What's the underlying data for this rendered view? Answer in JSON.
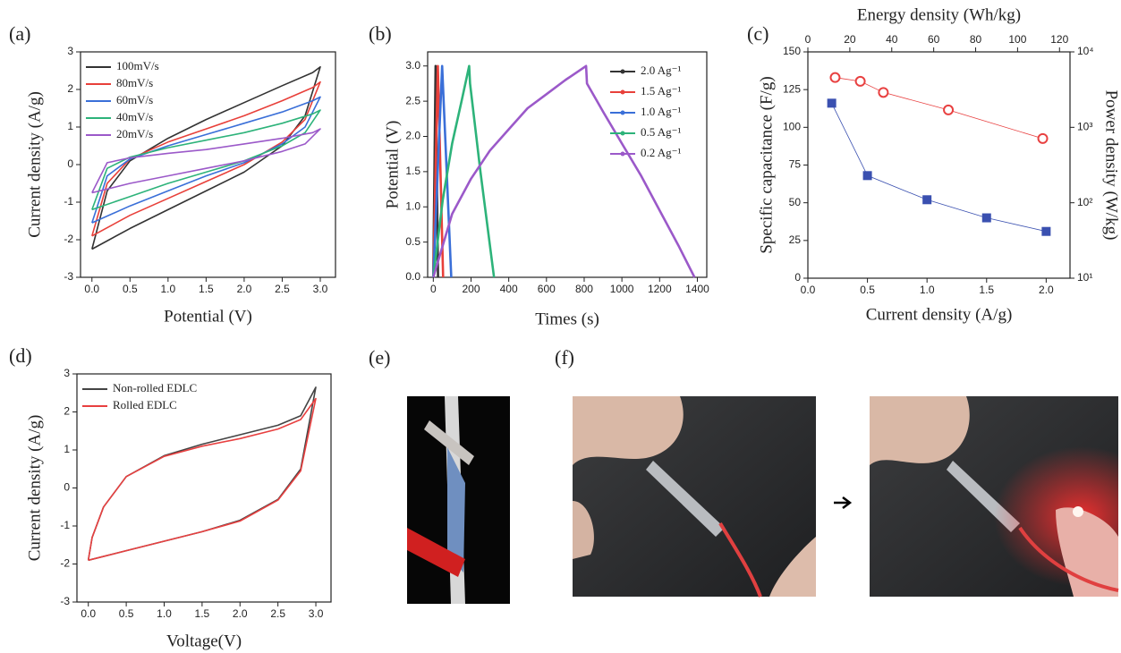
{
  "figure_panels": [
    {
      "label": "(e)"
    },
    {
      "label": "(f)"
    }
  ],
  "chart_data": [
    {
      "type": "line",
      "panel_label": "(a)",
      "xlabel": "Potential (V)",
      "ylabel": "Current density (A/g)",
      "xlim": [
        -0.15,
        3.2
      ],
      "ylim": [
        -3,
        3
      ],
      "xticks": [
        {
          "value": 0,
          "label": "0.0"
        },
        {
          "value": 0.5,
          "label": "0.5"
        },
        {
          "value": 1,
          "label": "1.0"
        },
        {
          "value": 1.5,
          "label": "1.5"
        },
        {
          "value": 2,
          "label": "2.0"
        },
        {
          "value": 2.5,
          "label": "2.5"
        },
        {
          "value": 3,
          "label": "3.0"
        }
      ],
      "yticks": [
        -3,
        -2,
        -1,
        0,
        1,
        2,
        3
      ],
      "legend": "upper left",
      "series": [
        {
          "name": "100mV/s",
          "color": "#333333",
          "x": [
            0,
            0.5,
            1,
            1.5,
            2,
            2.5,
            2.8,
            3,
            2.9,
            2.5,
            2,
            1.5,
            1,
            0.5,
            0.2,
            0
          ],
          "values": [
            -2.25,
            -1.7,
            -1.2,
            -0.7,
            -0.2,
            0.5,
            1.3,
            2.6,
            2.45,
            2.1,
            1.65,
            1.2,
            0.7,
            0.1,
            -0.7,
            -2.25
          ]
        },
        {
          "name": "80mV/s",
          "color": "#e8403a",
          "x": [
            0,
            0.5,
            1,
            1.5,
            2,
            2.5,
            2.8,
            3,
            2.9,
            2.5,
            2,
            1.5,
            1,
            0.5,
            0.2,
            0
          ],
          "values": [
            -1.9,
            -1.35,
            -0.9,
            -0.45,
            0,
            0.6,
            1.2,
            2.2,
            2.05,
            1.7,
            1.3,
            0.95,
            0.6,
            0.15,
            -0.5,
            -1.9
          ]
        },
        {
          "name": "60mV/s",
          "color": "#3a6fd8",
          "x": [
            0,
            0.5,
            1,
            1.5,
            2,
            2.5,
            2.8,
            3,
            2.9,
            2.5,
            2,
            1.5,
            1,
            0.5,
            0.2,
            0
          ],
          "values": [
            -1.55,
            -1.1,
            -0.7,
            -0.3,
            0.05,
            0.55,
            1.0,
            1.8,
            1.7,
            1.4,
            1.1,
            0.8,
            0.5,
            0.15,
            -0.3,
            -1.55
          ]
        },
        {
          "name": "40mV/s",
          "color": "#2db37a",
          "x": [
            0,
            0.5,
            1,
            1.5,
            2,
            2.5,
            2.8,
            3,
            2.9,
            2.5,
            2,
            1.5,
            1,
            0.5,
            0.2,
            0
          ],
          "values": [
            -1.2,
            -0.85,
            -0.5,
            -0.2,
            0.1,
            0.5,
            0.85,
            1.45,
            1.35,
            1.1,
            0.85,
            0.65,
            0.45,
            0.2,
            -0.1,
            -1.2
          ]
        },
        {
          "name": "20mV/s",
          "color": "#9b59c9",
          "x": [
            0,
            0.5,
            1,
            1.5,
            2,
            2.5,
            2.8,
            3,
            2.9,
            2.5,
            2,
            1.5,
            1,
            0.5,
            0.2,
            0
          ],
          "values": [
            -0.75,
            -0.5,
            -0.3,
            -0.1,
            0.1,
            0.35,
            0.55,
            0.95,
            0.85,
            0.7,
            0.55,
            0.4,
            0.3,
            0.18,
            0.05,
            -0.75
          ]
        }
      ]
    },
    {
      "type": "line",
      "panel_label": "(b)",
      "xlabel": "Times (s)",
      "ylabel": "Potential (V)",
      "xlim": [
        -30,
        1450
      ],
      "ylim": [
        0,
        3.2
      ],
      "xticks": [
        0,
        200,
        400,
        600,
        800,
        1000,
        1200,
        1400
      ],
      "yticks": [
        {
          "value": 0,
          "label": "0.0"
        },
        {
          "value": 0.5,
          "label": "0.5"
        },
        {
          "value": 1,
          "label": "1.0"
        },
        {
          "value": 1.5,
          "label": "1.5"
        },
        {
          "value": 2,
          "label": "2.0"
        },
        {
          "value": 2.5,
          "label": "2.5"
        },
        {
          "value": 3,
          "label": "3.0"
        }
      ],
      "legend": "upper right",
      "series": [
        {
          "name": "2.0 Ag⁻¹",
          "color": "#333333",
          "x": [
            0,
            12,
            25
          ],
          "values": [
            0,
            3,
            0
          ]
        },
        {
          "name": "1.5 Ag⁻¹",
          "color": "#e8403a",
          "x": [
            0,
            24,
            52
          ],
          "values": [
            0,
            3,
            0
          ]
        },
        {
          "name": "1.0 Ag⁻¹",
          "color": "#3a6fd8",
          "x": [
            0,
            47,
            95
          ],
          "values": [
            0,
            3,
            0
          ]
        },
        {
          "name": "0.5 Ag⁻¹",
          "color": "#2db37a",
          "x": [
            0,
            50,
            100,
            150,
            190,
            195,
            250,
            322
          ],
          "values": [
            0,
            1.1,
            1.9,
            2.5,
            3,
            2.75,
            1.5,
            0
          ]
        },
        {
          "name": "0.2 Ag⁻¹",
          "color": "#9b59c9",
          "x": [
            0,
            100,
            200,
            300,
            400,
            500,
            600,
            700,
            810,
            815,
            900,
            1000,
            1100,
            1200,
            1300,
            1385
          ],
          "values": [
            0,
            0.9,
            1.4,
            1.8,
            2.1,
            2.4,
            2.6,
            2.8,
            3,
            2.75,
            2.35,
            1.9,
            1.45,
            0.95,
            0.45,
            0
          ]
        }
      ]
    },
    {
      "type": "scatter",
      "panel_label": "(c)",
      "xlabel": "Current density (A/g)",
      "ylabel": "Specific capacitance (F/g)",
      "x2label": "Energy density (Wh/kg)",
      "y2label": "Power density (W/kg)",
      "xlim": [
        0,
        2.2
      ],
      "ylim": [
        0,
        150
      ],
      "x2lim": [
        0,
        125
      ],
      "y2lim": [
        10,
        10000
      ],
      "y2scale": "log",
      "xticks": [
        {
          "value": 0,
          "label": "0.0"
        },
        {
          "value": 0.5,
          "label": "0.5"
        },
        {
          "value": 1,
          "label": "1.0"
        },
        {
          "value": 1.5,
          "label": "1.5"
        },
        {
          "value": 2,
          "label": "2.0"
        }
      ],
      "yticks": [
        0,
        25,
        50,
        75,
        100,
        125,
        150
      ],
      "x2ticks": [
        0,
        20,
        40,
        60,
        80,
        100,
        120
      ],
      "y2ticks": [
        {
          "value": 10,
          "label": "10¹"
        },
        {
          "value": 100,
          "label": "10²"
        },
        {
          "value": 1000,
          "label": "10³"
        },
        {
          "value": 10000,
          "label": "10⁴"
        }
      ],
      "series": [
        {
          "color": "#3a50b0",
          "marker": "square",
          "x": [
            0.2,
            0.5,
            1,
            1.5,
            2
          ],
          "values": [
            116,
            68,
            52,
            40,
            31
          ]
        },
        {
          "color": "#e84040",
          "marker": "open-circle",
          "axis": "y2",
          "xaxis": "x2",
          "x": [
            13,
            25,
            36,
            67,
            112
          ],
          "values": [
            4570,
            4070,
            2900,
            1700,
            710
          ]
        }
      ]
    },
    {
      "type": "line",
      "panel_label": "(d)",
      "xlabel": "Voltage(V)",
      "ylabel": "Current density (A/g)",
      "xlim": [
        -0.15,
        3.2
      ],
      "ylim": [
        -3,
        3
      ],
      "xticks": [
        {
          "value": 0,
          "label": "0.0"
        },
        {
          "value": 0.5,
          "label": "0.5"
        },
        {
          "value": 1,
          "label": "1.0"
        },
        {
          "value": 1.5,
          "label": "1.5"
        },
        {
          "value": 2,
          "label": "2.0"
        },
        {
          "value": 2.5,
          "label": "2.5"
        },
        {
          "value": 3,
          "label": "3.0"
        }
      ],
      "yticks": [
        -3,
        -2,
        -1,
        0,
        1,
        2,
        3
      ],
      "legend": "upper left",
      "series": [
        {
          "name": "Non-rolled EDLC",
          "color": "#444444",
          "x": [
            0,
            0.5,
            1,
            1.5,
            2,
            2.5,
            2.8,
            3,
            2.8,
            2.5,
            2,
            1.5,
            1,
            0.5,
            0.2,
            0.05,
            0
          ],
          "values": [
            -1.9,
            -1.65,
            -1.4,
            -1.15,
            -0.85,
            -0.3,
            0.5,
            2.65,
            1.9,
            1.65,
            1.4,
            1.15,
            0.85,
            0.3,
            -0.5,
            -1.3,
            -1.9
          ]
        },
        {
          "name": "Rolled EDLC",
          "color": "#e84040",
          "x": [
            0,
            0.5,
            1,
            1.5,
            2,
            2.5,
            2.8,
            3,
            2.8,
            2.5,
            2,
            1.5,
            1,
            0.5,
            0.2,
            0.05,
            0
          ],
          "values": [
            -1.9,
            -1.65,
            -1.4,
            -1.15,
            -0.87,
            -0.32,
            0.45,
            2.35,
            1.8,
            1.55,
            1.3,
            1.1,
            0.83,
            0.3,
            -0.5,
            -1.3,
            -1.9
          ]
        }
      ]
    }
  ]
}
